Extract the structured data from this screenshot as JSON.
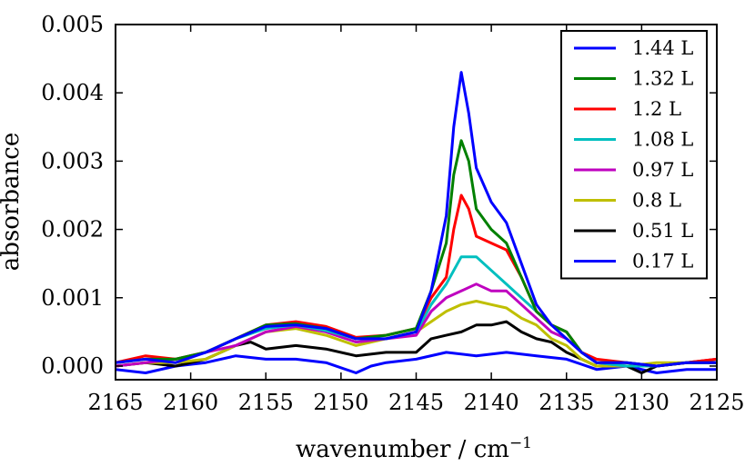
{
  "chart_data": {
    "type": "line",
    "title": "",
    "xlabel": "wavenumber / cm",
    "xlabel_superscript": "−1",
    "ylabel": "absorbance",
    "xlim": [
      2165,
      2125
    ],
    "ylim": [
      -0.0002,
      0.005
    ],
    "xticks": [
      2165,
      2160,
      2155,
      2150,
      2145,
      2140,
      2135,
      2130,
      2125
    ],
    "xtick_labels": [
      "2165",
      "2160",
      "2155",
      "2150",
      "2145",
      "2140",
      "2135",
      "2130",
      "2125"
    ],
    "yticks": [
      0.0,
      0.001,
      0.002,
      0.003,
      0.004,
      0.005
    ],
    "ytick_labels": [
      "0.000",
      "0.001",
      "0.002",
      "0.003",
      "0.004",
      "0.005"
    ],
    "grid": false,
    "legend_position": "top-right",
    "series": [
      {
        "name": "1.44 L",
        "color": "#0000ff",
        "x": [
          2165,
          2163,
          2161,
          2159,
          2157,
          2155,
          2153,
          2151,
          2149,
          2147,
          2145,
          2144,
          2143,
          2142.5,
          2142,
          2141.5,
          2141,
          2140,
          2139,
          2138,
          2137,
          2136,
          2135,
          2134,
          2133,
          2131,
          2129,
          2127,
          2125
        ],
        "y": [
          5e-05,
          0.0001,
          5e-05,
          0.0002,
          0.0004,
          0.00058,
          0.0006,
          0.00055,
          0.0004,
          0.0004,
          0.0005,
          0.0011,
          0.0022,
          0.0035,
          0.0043,
          0.0037,
          0.0029,
          0.0024,
          0.0021,
          0.0015,
          0.0009,
          0.0006,
          0.0004,
          0.0002,
          5e-05,
          5e-05,
          0.0,
          5e-05,
          5e-05
        ]
      },
      {
        "name": "1.32 L",
        "color": "#008000",
        "x": [
          2165,
          2163,
          2161,
          2159,
          2157,
          2155,
          2153,
          2151,
          2149,
          2147,
          2145,
          2144,
          2143,
          2142.5,
          2142,
          2141.5,
          2141,
          2140,
          2139,
          2138,
          2137,
          2136,
          2135,
          2134,
          2133,
          2131,
          2129,
          2127,
          2125
        ],
        "y": [
          5e-05,
          0.0001,
          0.0001,
          0.0002,
          0.0004,
          0.0006,
          0.00062,
          0.00055,
          0.0004,
          0.00045,
          0.00055,
          0.0011,
          0.0018,
          0.0028,
          0.0033,
          0.003,
          0.0023,
          0.002,
          0.0018,
          0.0013,
          0.0008,
          0.0006,
          0.0005,
          0.0002,
          5e-05,
          5e-05,
          0.0,
          5e-05,
          5e-05
        ]
      },
      {
        "name": "1.2 L",
        "color": "#ff0000",
        "x": [
          2165,
          2163,
          2161,
          2159,
          2157,
          2155,
          2153,
          2151,
          2149,
          2147,
          2145,
          2144,
          2143,
          2142.5,
          2142,
          2141.5,
          2141,
          2140,
          2139,
          2138,
          2137,
          2136,
          2135,
          2134,
          2133,
          2131,
          2129,
          2127,
          2125
        ],
        "y": [
          5e-05,
          0.00015,
          0.0001,
          0.0002,
          0.0004,
          0.0006,
          0.00065,
          0.00058,
          0.00042,
          0.00045,
          0.00055,
          0.001,
          0.0013,
          0.002,
          0.0025,
          0.0023,
          0.0019,
          0.0018,
          0.0017,
          0.0013,
          0.0008,
          0.0006,
          0.0005,
          0.0002,
          0.0001,
          5e-05,
          0.0,
          5e-05,
          0.0001
        ]
      },
      {
        "name": "1.08 L",
        "color": "#00bfbf",
        "x": [
          2165,
          2163,
          2161,
          2159,
          2157,
          2155,
          2153,
          2151,
          2149,
          2147,
          2145,
          2144,
          2143,
          2142,
          2141,
          2140,
          2139,
          2138,
          2137,
          2136,
          2135,
          2134,
          2133,
          2131,
          2129,
          2127,
          2125
        ],
        "y": [
          5e-05,
          0.0001,
          0.0001,
          0.0002,
          0.0004,
          0.00055,
          0.0006,
          0.00052,
          0.0004,
          0.0004,
          0.0005,
          0.0009,
          0.0012,
          0.0016,
          0.0016,
          0.0014,
          0.0012,
          0.001,
          0.0008,
          0.0006,
          0.0005,
          0.0002,
          5e-05,
          0.0,
          0.0,
          5e-05,
          5e-05
        ]
      },
      {
        "name": "0.97 L",
        "color": "#bf00bf",
        "x": [
          2165,
          2163,
          2161,
          2159,
          2157,
          2155,
          2153,
          2151,
          2149,
          2147,
          2145,
          2144,
          2143,
          2142,
          2141,
          2140,
          2139,
          2138,
          2137,
          2136,
          2135,
          2134,
          2133,
          2131,
          2129,
          2127,
          2125
        ],
        "y": [
          0.0,
          5e-05,
          0.0001,
          0.0002,
          0.0003,
          0.0005,
          0.00058,
          0.0005,
          0.00035,
          0.0004,
          0.00045,
          0.0008,
          0.001,
          0.0011,
          0.0012,
          0.0011,
          0.0011,
          0.0009,
          0.0007,
          0.0005,
          0.0004,
          0.0002,
          5e-05,
          0.0,
          0.0,
          5e-05,
          0.0001
        ]
      },
      {
        "name": "0.8 L",
        "color": "#bfbf00",
        "x": [
          2165,
          2163,
          2161,
          2159,
          2157,
          2155,
          2153,
          2151,
          2149,
          2147,
          2145,
          2144,
          2143,
          2142,
          2141,
          2140,
          2139,
          2138,
          2137,
          2136,
          2135,
          2134,
          2133,
          2131,
          2129,
          2127,
          2125
        ],
        "y": [
          0.0,
          5e-05,
          5e-05,
          0.0001,
          0.0003,
          0.0005,
          0.00055,
          0.00045,
          0.0003,
          0.0004,
          0.0005,
          0.00065,
          0.0008,
          0.0009,
          0.00095,
          0.0009,
          0.00085,
          0.0007,
          0.0006,
          0.0004,
          0.0003,
          0.0001,
          0.0,
          0.0,
          5e-05,
          5e-05,
          0.0001
        ]
      },
      {
        "name": "0.51 L",
        "color": "#000000",
        "x": [
          2165,
          2163,
          2161,
          2159,
          2157,
          2156,
          2155,
          2153,
          2151,
          2149,
          2147,
          2145,
          2144,
          2143,
          2142,
          2141,
          2140,
          2139,
          2138,
          2137,
          2136,
          2135,
          2134,
          2133,
          2131,
          2130,
          2129,
          2127,
          2125
        ],
        "y": [
          0.0,
          5e-05,
          0.0,
          0.0001,
          0.0003,
          0.00035,
          0.00025,
          0.0003,
          0.00025,
          0.00015,
          0.0002,
          0.0002,
          0.0004,
          0.00045,
          0.0005,
          0.0006,
          0.0006,
          0.00065,
          0.0005,
          0.0004,
          0.00035,
          0.0002,
          0.0001,
          0.0,
          0.0,
          -0.0001,
          0.0,
          5e-05,
          5e-05
        ]
      },
      {
        "name": "0.17 L",
        "color": "#0000ff",
        "x": [
          2165,
          2163,
          2161,
          2159,
          2157,
          2155,
          2153,
          2151,
          2149,
          2148,
          2147,
          2145,
          2143,
          2141,
          2139,
          2137,
          2135,
          2133,
          2131,
          2129,
          2127,
          2125
        ],
        "y": [
          -5e-05,
          -0.0001,
          0.0,
          5e-05,
          0.00015,
          0.0001,
          0.0001,
          5e-05,
          -0.0001,
          0.0,
          5e-05,
          0.0001,
          0.0002,
          0.00015,
          0.0002,
          0.00015,
          0.0001,
          -5e-05,
          0.0,
          -0.0001,
          -5e-05,
          -5e-05
        ]
      }
    ]
  }
}
